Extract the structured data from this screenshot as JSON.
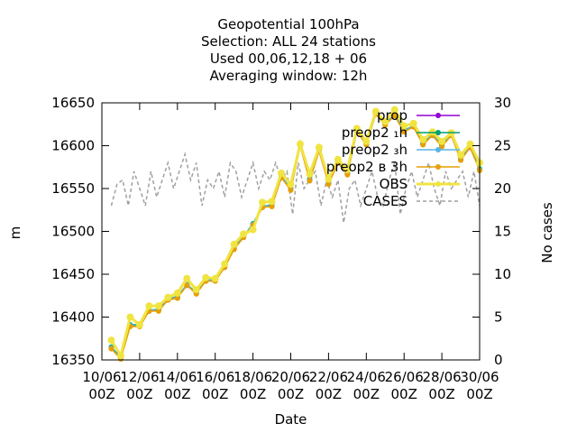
{
  "chart_data": {
    "type": "line",
    "title_lines": [
      "Geopotential 100hPa",
      "Selection: ALL      24 stations",
      "Used  00,06,12,18 + 06",
      "Averaging window: 12h"
    ],
    "xlabel": "Date",
    "ylabel": "m",
    "y2label": "No cases",
    "x_ticks": [
      "10/06",
      "12/06",
      "14/06",
      "16/06",
      "18/06",
      "20/06",
      "22/06",
      "24/06",
      "26/06",
      "28/06",
      "30/06"
    ],
    "x_tick_sublabel": "00Z",
    "x_range_days": [
      10,
      30
    ],
    "ylim": [
      16350,
      16650
    ],
    "y_ticks": [
      16350,
      16400,
      16450,
      16500,
      16550,
      16600,
      16650
    ],
    "y2lim": [
      0,
      30
    ],
    "y2_ticks": [
      0,
      5,
      10,
      15,
      20,
      25,
      30
    ],
    "legend_position": "top-right",
    "x": [
      10.5,
      11,
      11.5,
      12,
      12.5,
      13,
      13.5,
      14,
      14.5,
      15,
      15.5,
      16,
      16.5,
      17,
      17.5,
      18,
      18.5,
      19,
      19.5,
      20,
      20.5,
      21,
      21.5,
      22,
      22.5,
      23,
      23.5,
      24,
      24.5,
      25,
      25.5,
      26,
      26.5,
      27,
      27.5,
      28,
      28.5,
      29,
      29.5,
      30
    ],
    "series": [
      {
        "name": "prop",
        "color": "#9400d3",
        "axis": "y",
        "values": [
          16364,
          16352,
          16390,
          16390,
          16407,
          16408,
          16420,
          16423,
          16437,
          16428,
          16442,
          16443,
          16458,
          16480,
          16493,
          16508,
          16528,
          16530,
          16563,
          16549,
          16600,
          16560,
          16594,
          16556,
          16580,
          16567,
          16617,
          16602,
          16637,
          16625,
          16635,
          16617,
          16622,
          16602,
          16612,
          16600,
          16612,
          16584,
          16598,
          16572
        ]
      },
      {
        "name": "preop2 ₁h",
        "color": "#009e73",
        "axis": "y",
        "values": [
          16365,
          16353,
          16391,
          16391,
          16408,
          16409,
          16421,
          16424,
          16438,
          16429,
          16443,
          16444,
          16459,
          16481,
          16494,
          16509,
          16529,
          16531,
          16564,
          16550,
          16601,
          16561,
          16595,
          16557,
          16581,
          16568,
          16618,
          16603,
          16638,
          16626,
          16636,
          16618,
          16623,
          16603,
          16613,
          16601,
          16613,
          16585,
          16599,
          16573
        ]
      },
      {
        "name": "preop2 ₃h",
        "color": "#56b4e9",
        "axis": "y",
        "values": [
          16364,
          16352,
          16390,
          16390,
          16408,
          16408,
          16421,
          16423,
          16438,
          16428,
          16443,
          16443,
          16459,
          16480,
          16494,
          16508,
          16529,
          16530,
          16564,
          16549,
          16601,
          16560,
          16595,
          16556,
          16581,
          16567,
          16618,
          16602,
          16638,
          16625,
          16636,
          16617,
          16623,
          16602,
          16613,
          16600,
          16613,
          16584,
          16599,
          16572
        ]
      },
      {
        "name": "preop2 ʙ 3h",
        "color": "#e69f00",
        "axis": "y",
        "values": [
          16363,
          16351,
          16389,
          16389,
          16407,
          16407,
          16420,
          16422,
          16437,
          16427,
          16442,
          16442,
          16458,
          16479,
          16493,
          16507,
          16528,
          16529,
          16563,
          16548,
          16600,
          16559,
          16594,
          16555,
          16580,
          16566,
          16617,
          16601,
          16637,
          16624,
          16635,
          16616,
          16622,
          16601,
          16612,
          16599,
          16612,
          16583,
          16598,
          16571
        ]
      },
      {
        "name": "OBS",
        "color": "#f0e442",
        "axis": "y",
        "values": [
          16373,
          16355,
          16400,
          16391,
          16413,
          16413,
          16423,
          16428,
          16445,
          16432,
          16446,
          16445,
          16462,
          16485,
          16497,
          16502,
          16534,
          16535,
          16568,
          16555,
          16602,
          16567,
          16598,
          16561,
          16584,
          16572,
          16620,
          16605,
          16640,
          16628,
          16642,
          16623,
          16626,
          16607,
          16616,
          16605,
          16615,
          16589,
          16602,
          16580
        ]
      }
    ],
    "cases": {
      "name": "CASES",
      "color": "#a0a0a0",
      "axis": "y2",
      "x": [
        10.5,
        10.8,
        11.1,
        11.4,
        11.7,
        12,
        12.3,
        12.6,
        12.9,
        13.2,
        13.5,
        13.8,
        14.1,
        14.4,
        14.7,
        15,
        15.3,
        15.6,
        15.9,
        16.2,
        16.5,
        16.8,
        17.1,
        17.4,
        17.7,
        18,
        18.3,
        18.6,
        18.9,
        19.2,
        19.5,
        19.8,
        20.1,
        20.4,
        20.7,
        21,
        21.3,
        21.6,
        21.9,
        22.2,
        22.5,
        22.8,
        23.1,
        23.4,
        23.7,
        24,
        24.3,
        24.6,
        24.9,
        25.2,
        25.5,
        25.8,
        26.1,
        26.4,
        26.7,
        27,
        27.3,
        27.6,
        27.9,
        28.2,
        28.5,
        28.8,
        29.1,
        29.4,
        29.7,
        30
      ],
      "values": [
        18,
        20.5,
        21,
        18,
        22,
        20,
        18,
        22,
        19,
        21,
        23,
        20,
        22,
        24,
        21,
        23,
        18,
        21,
        20,
        22,
        19,
        23,
        22,
        19,
        21,
        23,
        20,
        22,
        21,
        23,
        21,
        22,
        17,
        23,
        20,
        21,
        22,
        18,
        21,
        19,
        21,
        16,
        20,
        21,
        18,
        20,
        22,
        19,
        18,
        21,
        23,
        17,
        20,
        22,
        19,
        21,
        23,
        20,
        18,
        22,
        20,
        21,
        22,
        19,
        22,
        18
      ]
    }
  }
}
